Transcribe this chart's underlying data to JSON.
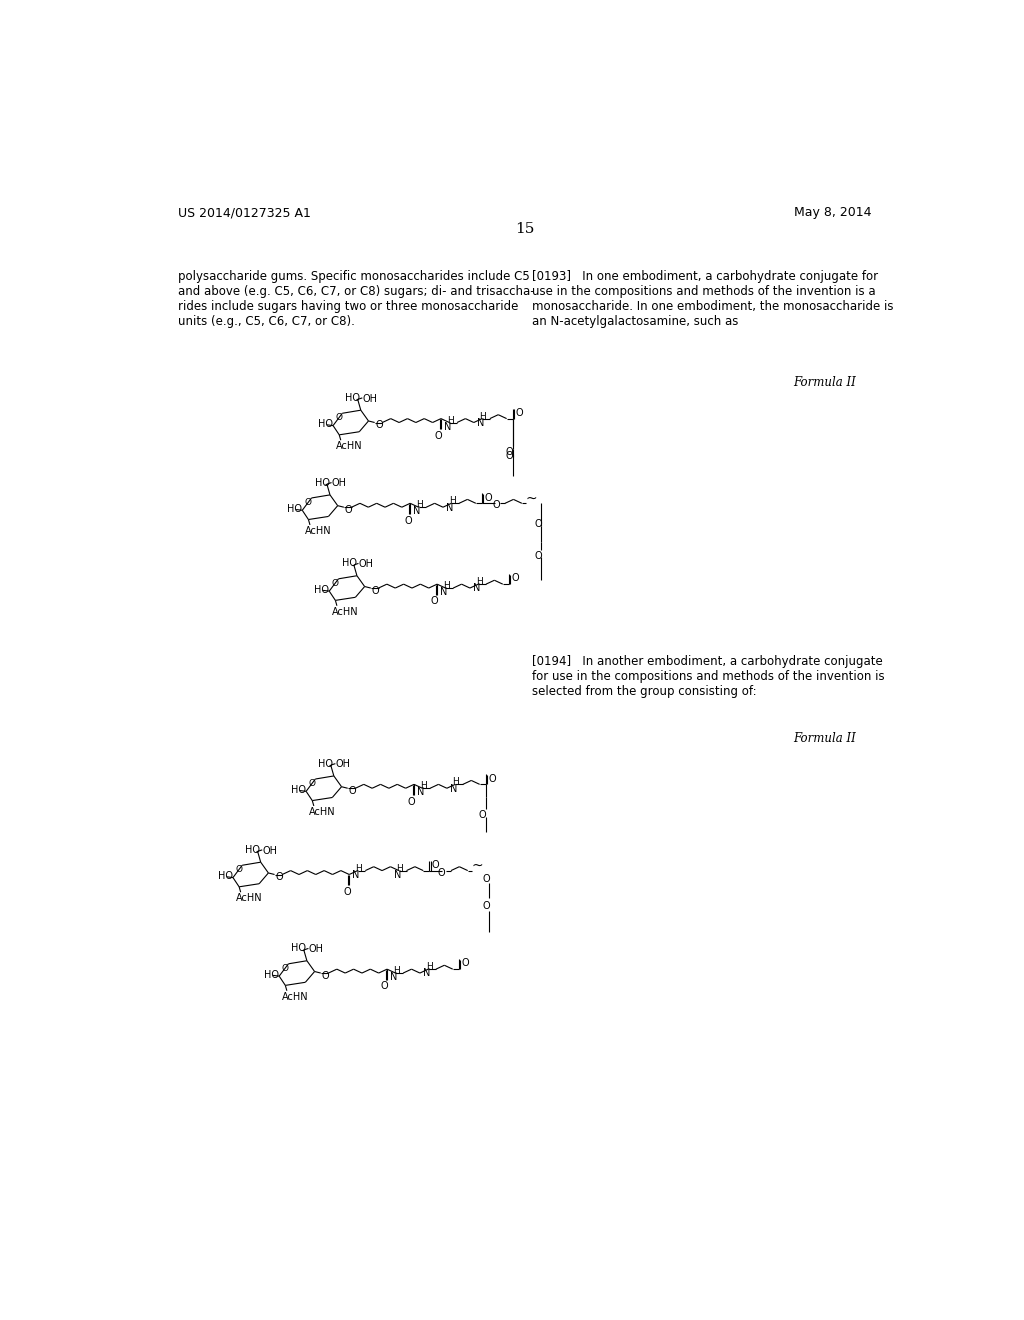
{
  "bg_color": "#ffffff",
  "header_left": "US 2014/0127325 A1",
  "header_right": "May 8, 2014",
  "page_number": "15",
  "left_text": "polysaccharide gums. Specific monosaccharides include C5\nand above (e.g. C5, C6, C7, or C8) sugars; di- and trisaccha-\nrides include sugars having two or three monosaccharide\nunits (e.g., C5, C6, C7, or C8).",
  "right_text_193": "[0193]   In one embodiment, a carbohydrate conjugate for\nuse in the compositions and methods of the invention is a\nmonosaccharide. In one embodiment, the monosaccharide is\nan N-acetylgalactosamine, such as",
  "formula_label_1": "Formula II",
  "right_text_194": "[0194]   In another embodiment, a carbohydrate conjugate\nfor use in the compositions and methods of the invention is\nselected from the group consisting of:",
  "formula_label_2": "Formula II",
  "font_size_header": 9,
  "font_size_body": 8.5,
  "font_size_page": 11,
  "font_size_formula": 8.5,
  "font_size_chem": 7.0,
  "font_size_chem_small": 6.0
}
